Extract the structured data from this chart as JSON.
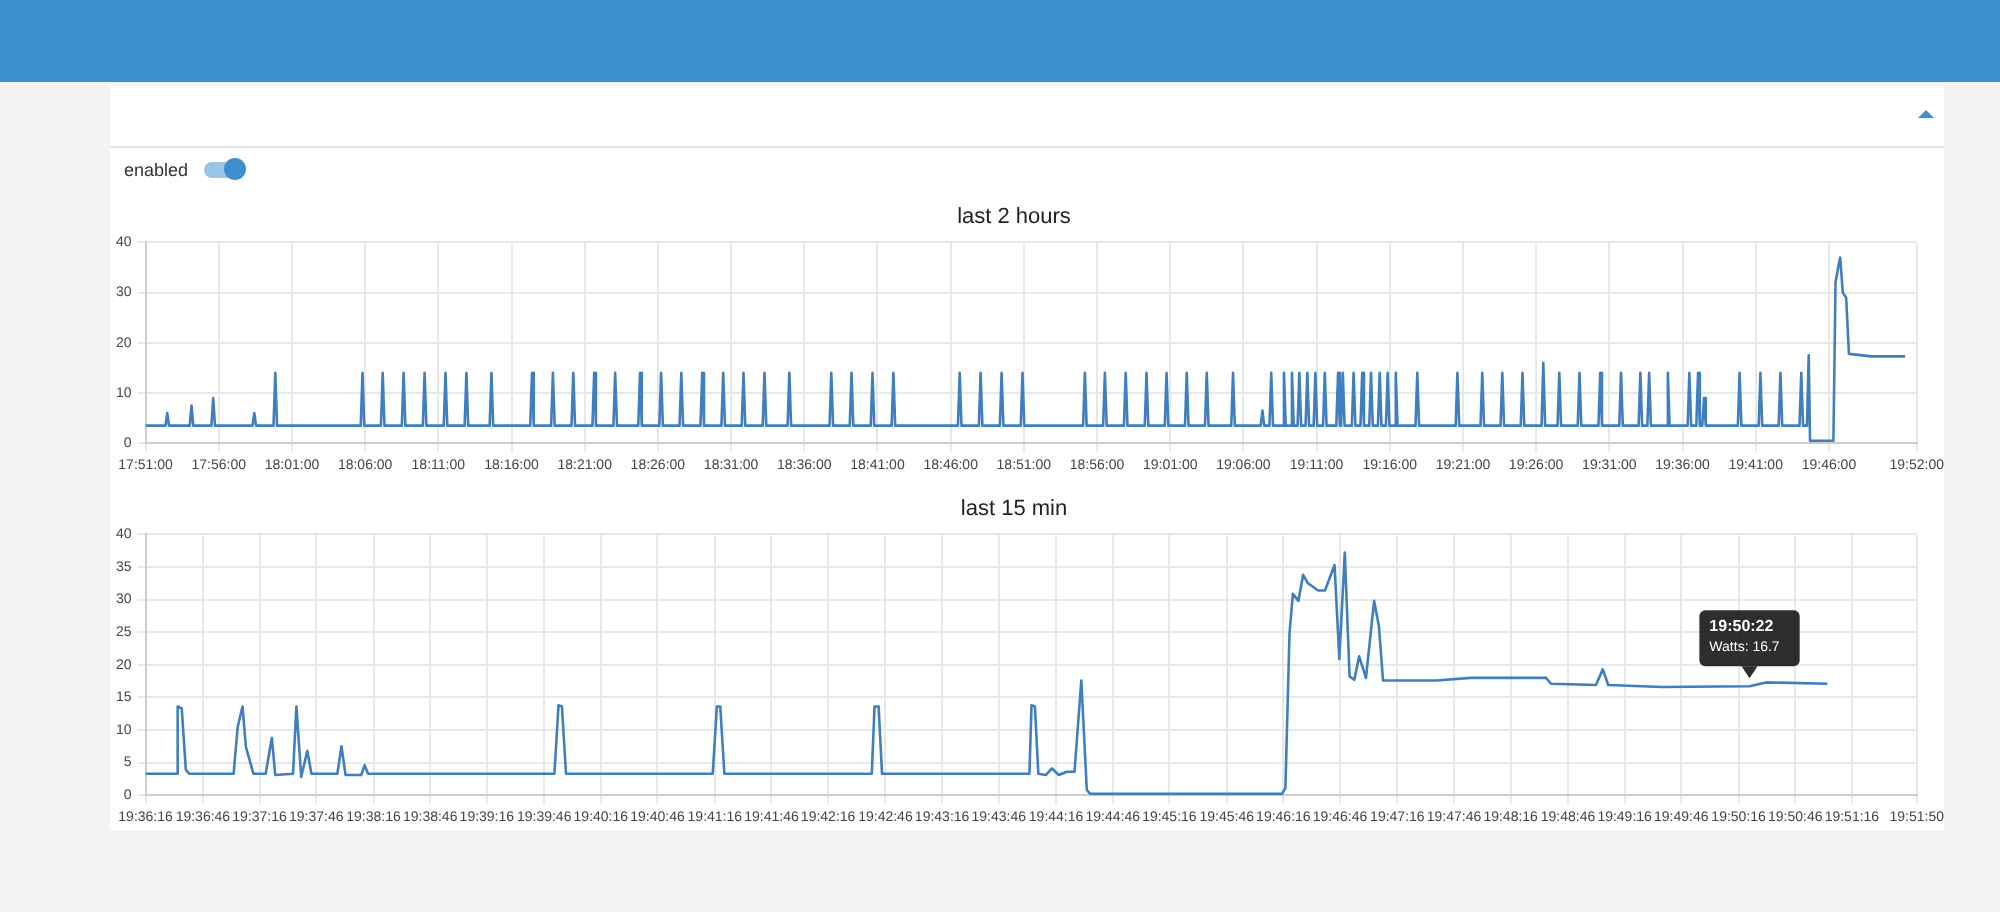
{
  "chart_data": [
    {
      "type": "line",
      "title": "last 2 hours",
      "color": "#3f7fbf",
      "grid": true,
      "marker": "none",
      "annotations": [
        "enabled"
      ],
      "xlim": [
        17.85,
        19.8667
      ],
      "ylim": [
        0,
        40
      ],
      "yticks": [
        0,
        10,
        20,
        30,
        40
      ],
      "xticks": [
        {
          "value": 17.85,
          "label": "17:51:00"
        },
        {
          "value": 17.9333,
          "label": "17:56:00"
        },
        {
          "value": 18.0167,
          "label": "18:01:00"
        },
        {
          "value": 18.1,
          "label": "18:06:00"
        },
        {
          "value": 18.1833,
          "label": "18:11:00"
        },
        {
          "value": 18.2667,
          "label": "18:16:00"
        },
        {
          "value": 18.35,
          "label": "18:21:00"
        },
        {
          "value": 18.4333,
          "label": "18:26:00"
        },
        {
          "value": 18.5167,
          "label": "18:31:00"
        },
        {
          "value": 18.6,
          "label": "18:36:00"
        },
        {
          "value": 18.6833,
          "label": "18:41:00"
        },
        {
          "value": 18.7667,
          "label": "18:46:00"
        },
        {
          "value": 18.85,
          "label": "18:51:00"
        },
        {
          "value": 18.9333,
          "label": "18:56:00"
        },
        {
          "value": 19.0167,
          "label": "19:01:00"
        },
        {
          "value": 19.1,
          "label": "19:06:00"
        },
        {
          "value": 19.1833,
          "label": "19:11:00"
        },
        {
          "value": 19.2667,
          "label": "19:16:00"
        },
        {
          "value": 19.35,
          "label": "19:21:00"
        },
        {
          "value": 19.4333,
          "label": "19:26:00"
        },
        {
          "value": 19.5167,
          "label": "19:31:00"
        },
        {
          "value": 19.6,
          "label": "19:36:00"
        },
        {
          "value": 19.6833,
          "label": "19:41:00"
        },
        {
          "value": 19.7667,
          "label": "19:46:00"
        },
        {
          "value": 19.8667,
          "label": "19:52:00"
        }
      ],
      "x": [
        17.85,
        17.8727,
        17.8747,
        17.8767,
        17.9003,
        17.9023,
        17.9043,
        17.925,
        17.927,
        17.929,
        17.9718,
        17.9738,
        17.9758,
        17.9957,
        17.9977,
        17.9997,
        18.095,
        18.097,
        18.099,
        18.118,
        18.12,
        18.122,
        18.1418,
        18.1438,
        18.1458,
        18.1657,
        18.1677,
        18.1697,
        18.1895,
        18.1915,
        18.1935,
        18.2133,
        18.2153,
        18.2173,
        18.2418,
        18.2438,
        18.2458,
        18.288,
        18.29,
        18.292,
        18.3118,
        18.3138,
        18.3158,
        18.335,
        18.337,
        18.339,
        18.3588,
        18.3608,
        18.3628,
        18.3827,
        18.3847,
        18.3867,
        18.411,
        18.413,
        18.415,
        18.435,
        18.437,
        18.439,
        18.458,
        18.46,
        18.462,
        18.4818,
        18.4838,
        18.4858,
        18.5057,
        18.5077,
        18.5097,
        18.5288,
        18.5308,
        18.5328,
        18.5527,
        18.5547,
        18.5567,
        18.581,
        18.583,
        18.585,
        18.6288,
        18.6308,
        18.6328,
        18.6518,
        18.6538,
        18.6558,
        18.6757,
        18.6777,
        18.6797,
        18.6995,
        18.7015,
        18.7035,
        18.775,
        18.777,
        18.779,
        18.7988,
        18.8008,
        18.8028,
        18.8227,
        18.8247,
        18.8267,
        18.8465,
        18.8485,
        18.8505,
        18.9175,
        18.9195,
        18.9215,
        18.9403,
        18.9423,
        18.9443,
        18.964,
        18.966,
        18.968,
        18.9877,
        18.9897,
        18.9917,
        19.0105,
        19.0125,
        19.0145,
        19.0335,
        19.0355,
        19.0375,
        19.0563,
        19.0583,
        19.0603,
        19.0862,
        19.0882,
        19.0902,
        19.1197,
        19.1217,
        19.1237,
        19.1297,
        19.1317,
        19.1337,
        19.1442,
        19.1462,
        19.1482,
        19.1533,
        19.1553,
        19.1573,
        19.1617,
        19.1637,
        19.1657,
        19.1708,
        19.1728,
        19.1748,
        19.18,
        19.182,
        19.184,
        19.1907,
        19.1927,
        19.1947,
        19.2058,
        19.2078,
        19.2098,
        19.2112,
        19.2132,
        19.2152,
        19.2235,
        19.2255,
        19.2275,
        19.2333,
        19.2353,
        19.2373,
        19.2433,
        19.2453,
        19.2473,
        19.2532,
        19.2552,
        19.2572,
        19.2623,
        19.2643,
        19.2663,
        19.2715,
        19.2735,
        19.2755,
        19.296,
        19.298,
        19.3,
        19.3417,
        19.3437,
        19.3457,
        19.37,
        19.372,
        19.374,
        19.3928,
        19.3948,
        19.3968,
        19.4158,
        19.4178,
        19.4198,
        19.4395,
        19.4415,
        19.4435,
        19.4577,
        19.4597,
        19.4617,
        19.4807,
        19.4827,
        19.4847,
        19.5043,
        19.5063,
        19.5083,
        19.528,
        19.53,
        19.532,
        19.55,
        19.552,
        19.554,
        19.56,
        19.562,
        19.564,
        19.5813,
        19.5833,
        19.5853,
        19.6058,
        19.6078,
        19.6098,
        19.6157,
        19.6177,
        19.6197,
        19.6225,
        19.6245,
        19.6265,
        19.663,
        19.665,
        19.667,
        19.6867,
        19.6887,
        19.6907,
        19.7095,
        19.7115,
        19.7135,
        19.7332,
        19.7352,
        19.7372,
        19.7417,
        19.7437,
        19.7452,
        19.7718,
        19.7742,
        19.7772,
        19.7795,
        19.7825,
        19.7863,
        19.7895,
        19.8153,
        19.8535
      ],
      "values": [
        3.5,
        3.5,
        6,
        3.5,
        3.5,
        7.5,
        3.5,
        3.5,
        9,
        3.5,
        3.5,
        6,
        3.5,
        3.5,
        14,
        3.5,
        3.5,
        14,
        3.5,
        3.5,
        14,
        3.5,
        3.5,
        14,
        3.5,
        3.5,
        14,
        3.5,
        3.5,
        14,
        3.5,
        3.5,
        14,
        3.5,
        3.5,
        14,
        3.5,
        3.5,
        14,
        3.5,
        3.5,
        14,
        3.5,
        3.5,
        14,
        3.5,
        3.5,
        14,
        3.5,
        3.5,
        14,
        3.5,
        3.5,
        14,
        3.5,
        3.5,
        14,
        3.5,
        3.5,
        14,
        3.5,
        3.5,
        14,
        3.5,
        3.5,
        14,
        3.5,
        3.5,
        14,
        3.5,
        3.5,
        14,
        3.5,
        3.5,
        14,
        3.5,
        3.5,
        14,
        3.5,
        3.5,
        14,
        3.5,
        3.5,
        14,
        3.5,
        3.5,
        14,
        3.5,
        3.5,
        14,
        3.5,
        3.5,
        14,
        3.5,
        3.5,
        14,
        3.5,
        3.5,
        14,
        3.5,
        3.5,
        14,
        3.5,
        3.5,
        14,
        3.5,
        3.5,
        14,
        3.5,
        3.5,
        14,
        3.5,
        3.5,
        14,
        3.5,
        3.5,
        14,
        3.5,
        3.5,
        14,
        3.5,
        3.5,
        14,
        3.5,
        3.5,
        6.5,
        3.5,
        3.5,
        14,
        3.5,
        3.5,
        14,
        3.5,
        3.5,
        14,
        3.5,
        3.5,
        14,
        3.5,
        3.5,
        14,
        3.5,
        3.5,
        14,
        3.5,
        3.5,
        14,
        3.5,
        3.5,
        14,
        3.5,
        3.5,
        14,
        3.5,
        3.5,
        14,
        3.5,
        3.5,
        14,
        3.5,
        3.5,
        14,
        3.5,
        3.5,
        14,
        3.5,
        3.5,
        14,
        3.5,
        3.5,
        14,
        3.5,
        3.5,
        14,
        3.5,
        3.5,
        14,
        3.5,
        3.5,
        14,
        3.5,
        3.5,
        14,
        3.5,
        3.5,
        14,
        3.5,
        3.5,
        16,
        3.5,
        3.5,
        14,
        3.5,
        3.5,
        14,
        3.5,
        3.5,
        14,
        3.5,
        3.5,
        14,
        3.5,
        3.5,
        14,
        3.5,
        3.5,
        14,
        3.5,
        3.5,
        14,
        3.5,
        3.5,
        14,
        3.5,
        3.5,
        14,
        3.5,
        3.5,
        9,
        3.5,
        3.5,
        14,
        3.5,
        3.5,
        14,
        3.5,
        3.5,
        14,
        3.5,
        3.5,
        14,
        3.5,
        3.5,
        17.5,
        0.5,
        0.5,
        32,
        35,
        37,
        30,
        29,
        17.8,
        17.3,
        17.3
      ]
    },
    {
      "type": "line",
      "title": "last 15 min",
      "color": "#3f7fbf",
      "grid": true,
      "marker": "none",
      "annotations": [
        {
          "text": "19:50:22\nWatts: 16.7",
          "x": 19.8394,
          "y": 16.7
        }
      ],
      "xlim": [
        19.6044,
        19.8639
      ],
      "ylim": [
        0,
        40
      ],
      "yticks": [
        0,
        5,
        10,
        15,
        20,
        25,
        30,
        35,
        40
      ],
      "xticks": [
        {
          "value": 19.6044,
          "label": "19:36:16"
        },
        {
          "value": 19.6128,
          "label": "19:36:46"
        },
        {
          "value": 19.6211,
          "label": "19:37:16"
        },
        {
          "value": 19.6294,
          "label": "19:37:46"
        },
        {
          "value": 19.6378,
          "label": "19:38:16"
        },
        {
          "value": 19.6461,
          "label": "19:38:46"
        },
        {
          "value": 19.6544,
          "label": "19:39:16"
        },
        {
          "value": 19.6628,
          "label": "19:39:46"
        },
        {
          "value": 19.6711,
          "label": "19:40:16"
        },
        {
          "value": 19.6794,
          "label": "19:40:46"
        },
        {
          "value": 19.6878,
          "label": "19:41:16"
        },
        {
          "value": 19.6961,
          "label": "19:41:46"
        },
        {
          "value": 19.7044,
          "label": "19:42:16"
        },
        {
          "value": 19.7128,
          "label": "19:42:46"
        },
        {
          "value": 19.7211,
          "label": "19:43:16"
        },
        {
          "value": 19.7294,
          "label": "19:43:46"
        },
        {
          "value": 19.7378,
          "label": "19:44:16"
        },
        {
          "value": 19.7461,
          "label": "19:44:46"
        },
        {
          "value": 19.7544,
          "label": "19:45:16"
        },
        {
          "value": 19.7628,
          "label": "19:45:46"
        },
        {
          "value": 19.7711,
          "label": "19:46:16"
        },
        {
          "value": 19.7794,
          "label": "19:46:46"
        },
        {
          "value": 19.7878,
          "label": "19:47:16"
        },
        {
          "value": 19.7961,
          "label": "19:47:46"
        },
        {
          "value": 19.8044,
          "label": "19:48:16"
        },
        {
          "value": 19.8128,
          "label": "19:48:46"
        },
        {
          "value": 19.8211,
          "label": "19:49:16"
        },
        {
          "value": 19.8294,
          "label": "19:49:46"
        },
        {
          "value": 19.8378,
          "label": "19:50:16"
        },
        {
          "value": 19.8461,
          "label": "19:50:46"
        },
        {
          "value": 19.8544,
          "label": "19:51:16"
        },
        {
          "value": 19.8639,
          "label": "19:51:50"
        }
      ],
      "x": [
        19.6044,
        19.6089,
        19.6091,
        19.6097,
        19.6103,
        19.6108,
        19.6173,
        19.6179,
        19.6186,
        19.6191,
        19.6202,
        19.622,
        19.6229,
        19.6234,
        19.626,
        19.6265,
        19.6272,
        19.6281,
        19.6287,
        19.6325,
        19.6331,
        19.6337,
        19.636,
        19.6365,
        19.637,
        19.6643,
        19.6649,
        19.6654,
        19.666,
        19.6875,
        19.6881,
        19.6886,
        19.6892,
        19.7108,
        19.7112,
        19.7118,
        19.7123,
        19.7339,
        19.7342,
        19.7347,
        19.7352,
        19.7363,
        19.7372,
        19.7382,
        19.7394,
        19.7405,
        19.7415,
        19.7423,
        19.7428,
        19.7709,
        19.7714,
        19.772,
        19.7725,
        19.7733,
        19.774,
        19.7747,
        19.7762,
        19.7772,
        19.7786,
        19.7793,
        19.7801,
        19.7808,
        19.7815,
        19.7822,
        19.7832,
        19.7844,
        19.7851,
        19.7857,
        19.7936,
        19.7985,
        19.8096,
        19.8103,
        19.8169,
        19.8179,
        19.8187,
        19.8266,
        19.8394,
        19.8418,
        19.8508
      ],
      "values": [
        3.3,
        3.3,
        13.6,
        13.3,
        3.9,
        3.3,
        3.3,
        10.5,
        13.6,
        7.4,
        3.3,
        3.3,
        8.8,
        3.1,
        3.3,
        13.6,
        2.8,
        6.8,
        3.3,
        3.3,
        7.5,
        3.1,
        3.1,
        4.6,
        3.3,
        3.3,
        13.8,
        13.6,
        3.3,
        3.3,
        13.6,
        13.6,
        3.3,
        3.3,
        13.6,
        13.6,
        3.3,
        3.3,
        13.8,
        13.6,
        3.3,
        3.1,
        4.1,
        3.1,
        3.6,
        3.6,
        17.6,
        0.8,
        0.2,
        0.2,
        1.1,
        24.8,
        30.9,
        29.8,
        33.8,
        32.5,
        31.4,
        31.4,
        35.3,
        20.9,
        37.2,
        18.2,
        17.7,
        21.3,
        18.0,
        29.8,
        25.9,
        17.6,
        17.6,
        18.0,
        18.0,
        17.1,
        16.9,
        19.3,
        16.9,
        16.6,
        16.7,
        17.3,
        17.1
      ]
    }
  ]
}
